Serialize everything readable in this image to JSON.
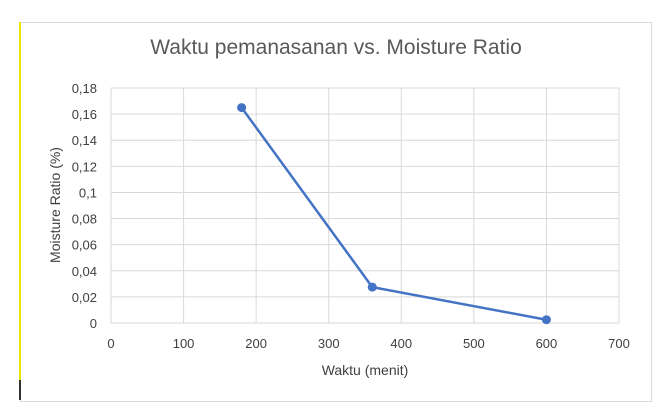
{
  "chart_data": {
    "type": "line",
    "title": "Waktu pemanasanan vs. Moisture Ratio",
    "xlabel": "Waktu (menit)",
    "ylabel": "Moisture Ratio  (%)",
    "xlim": [
      0,
      700
    ],
    "ylim": [
      0,
      0.18
    ],
    "xticks": [
      "0",
      "100",
      "200",
      "300",
      "400",
      "500",
      "600",
      "700"
    ],
    "yticks": [
      "0",
      "0,02",
      "0,04",
      "0,06",
      "0,08",
      "0,1",
      "0,12",
      "0,14",
      "0,16",
      "0,18"
    ],
    "grid": true,
    "series": [
      {
        "x": [
          180,
          360,
          600
        ],
        "y": [
          0.165,
          0.0275,
          0.0025
        ]
      }
    ],
    "colors": {
      "line": "#4472c4",
      "grid": "#d9d9d9"
    }
  }
}
